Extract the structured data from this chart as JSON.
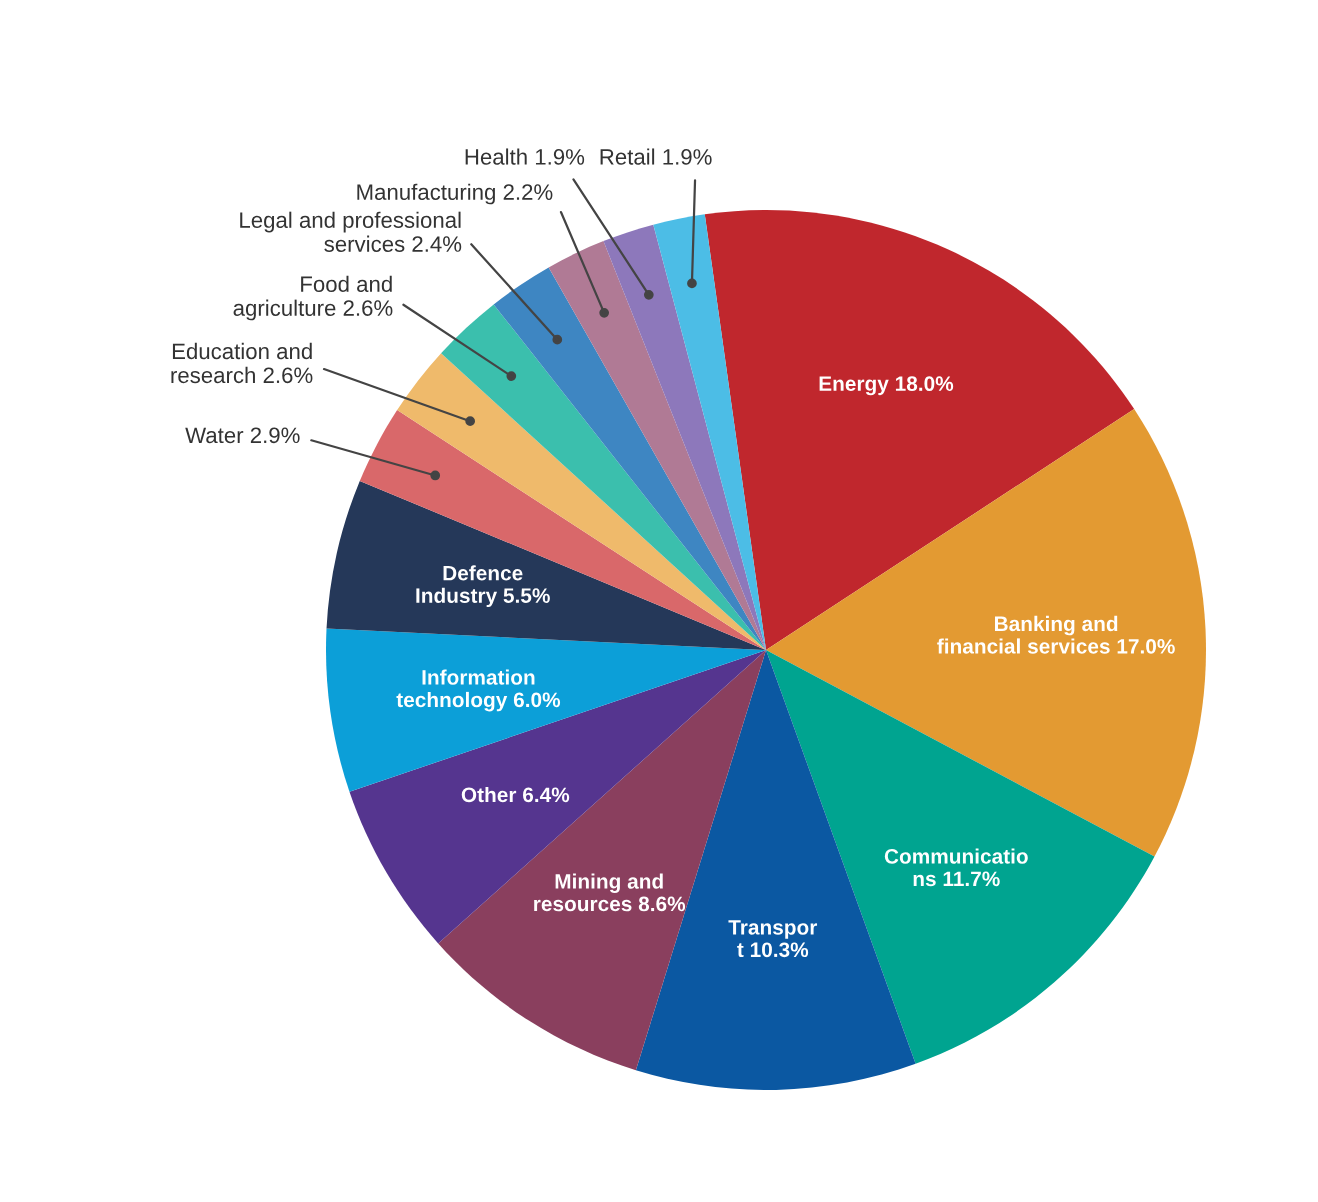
{
  "chart_data": {
    "type": "pie",
    "categories": [
      "Energy",
      "Banking and\nfinancial services",
      "Communicatio\nns",
      "Transpor\nt",
      "Mining and\nresources",
      "Other",
      "Information\ntechnology",
      "Defence\nIndustry",
      "Water",
      "Education and\nresearch",
      "Food and\nagriculture",
      "Legal and professional\nservices",
      "Manufacturing",
      "Health",
      "Retail"
    ],
    "values": [
      18.0,
      17.0,
      11.7,
      10.3,
      8.6,
      6.4,
      6.0,
      5.5,
      2.9,
      2.6,
      2.6,
      2.4,
      2.2,
      1.9,
      1.9
    ],
    "value_labels": [
      "18.0%",
      "17.0%",
      "11.7%",
      "10.3%",
      "8.6%",
      "6.4%",
      "6.0%",
      "5.5%",
      "2.9%",
      "2.6%",
      "2.6%",
      "2.4%",
      "2.2%",
      "1.9%",
      "1.9%"
    ],
    "colors": [
      "#c0272d",
      "#e39a32",
      "#00a490",
      "#0b58a2",
      "#8a3f5e",
      "#55358f",
      "#0c9fd8",
      "#253859",
      "#d9686a",
      "#efba6b",
      "#3bbfad",
      "#3e86c2",
      "#b07a95",
      "#8d78bb",
      "#4cbde6"
    ]
  }
}
